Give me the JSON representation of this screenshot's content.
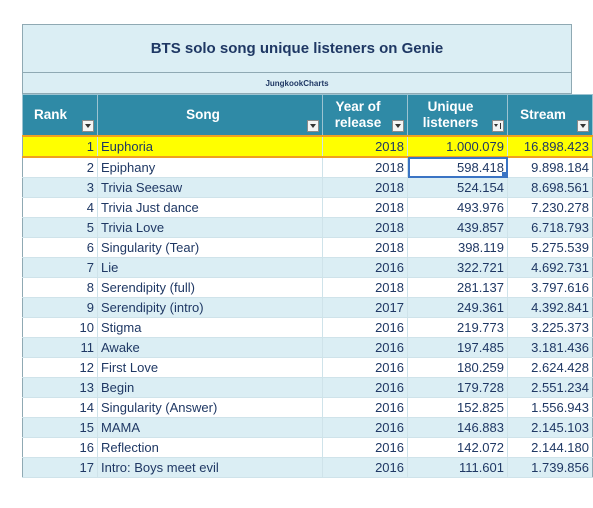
{
  "title": "BTS solo song unique listeners on Genie",
  "subtitle": "JungkookCharts",
  "headers": {
    "rank": "Rank",
    "song": "Song",
    "year_line1": "Year of",
    "year_line2": "release",
    "uniq_line1": "Unique",
    "uniq_line2": "listeners",
    "stream": "Stream"
  },
  "colors": {
    "header": "#2f8aa6",
    "band": "#dbeef4",
    "highlight": "#ffff00",
    "text": "#1f3864"
  },
  "rows": [
    {
      "rank": "1",
      "song": "Euphoria",
      "year": "2018",
      "unique": "1.000.079",
      "stream": "16.898.423"
    },
    {
      "rank": "2",
      "song": "Epiphany",
      "year": "2018",
      "unique": "598.418",
      "stream": "9.898.184"
    },
    {
      "rank": "3",
      "song": "Trivia Seesaw",
      "year": "2018",
      "unique": "524.154",
      "stream": "8.698.561"
    },
    {
      "rank": "4",
      "song": "Trivia Just dance",
      "year": "2018",
      "unique": "493.976",
      "stream": "7.230.278"
    },
    {
      "rank": "5",
      "song": "Trivia Love",
      "year": "2018",
      "unique": "439.857",
      "stream": "6.718.793"
    },
    {
      "rank": "6",
      "song": "Singularity (Tear)",
      "year": "2018",
      "unique": "398.119",
      "stream": "5.275.539"
    },
    {
      "rank": "7",
      "song": "Lie",
      "year": "2016",
      "unique": "322.721",
      "stream": "4.692.731"
    },
    {
      "rank": "8",
      "song": "Serendipity (full)",
      "year": "2018",
      "unique": "281.137",
      "stream": "3.797.616"
    },
    {
      "rank": "9",
      "song": "Serendipity (intro)",
      "year": "2017",
      "unique": "249.361",
      "stream": "4.392.841"
    },
    {
      "rank": "10",
      "song": "Stigma",
      "year": "2016",
      "unique": "219.773",
      "stream": "3.225.373"
    },
    {
      "rank": "11",
      "song": "Awake",
      "year": "2016",
      "unique": "197.485",
      "stream": "3.181.436"
    },
    {
      "rank": "12",
      "song": "First Love",
      "year": "2016",
      "unique": "180.259",
      "stream": "2.624.428"
    },
    {
      "rank": "13",
      "song": "Begin",
      "year": "2016",
      "unique": "179.728",
      "stream": "2.551.234"
    },
    {
      "rank": "14",
      "song": "Singularity (Answer)",
      "year": "2016",
      "unique": "152.825",
      "stream": "1.556.943"
    },
    {
      "rank": "15",
      "song": "MAMA",
      "year": "2016",
      "unique": "146.883",
      "stream": "2.145.103"
    },
    {
      "rank": "16",
      "song": "Reflection",
      "year": "2016",
      "unique": "142.072",
      "stream": "2.144.180"
    },
    {
      "rank": "17",
      "song": "Intro: Boys meet evil",
      "year": "2016",
      "unique": "111.601",
      "stream": "1.739.856"
    }
  ]
}
